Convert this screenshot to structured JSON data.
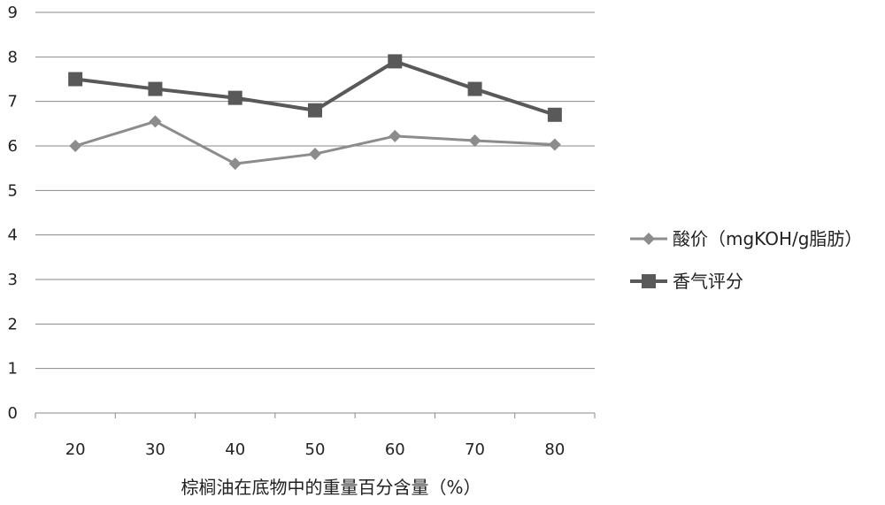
{
  "chart_data": {
    "type": "line",
    "title": "",
    "xlabel": "棕榈油在底物中的重量百分含量（%）",
    "ylabel": "",
    "categories": [
      "20",
      "30",
      "40",
      "50",
      "60",
      "70",
      "80"
    ],
    "y_ticks": [
      "0",
      "1",
      "2",
      "3",
      "4",
      "5",
      "6",
      "7",
      "8",
      "9"
    ],
    "ylim": [
      0,
      9
    ],
    "grid": true,
    "legend_position": "right",
    "series": [
      {
        "name": "酸价（mgKOH/g脂肪）",
        "marker": "diamond",
        "color": "#8c8c8c",
        "values": [
          6.0,
          6.55,
          5.6,
          5.82,
          6.22,
          6.12,
          6.03
        ]
      },
      {
        "name": "香气评分",
        "marker": "square",
        "color": "#595959",
        "values": [
          7.5,
          7.28,
          7.08,
          6.8,
          7.9,
          7.28,
          6.7
        ]
      }
    ]
  }
}
